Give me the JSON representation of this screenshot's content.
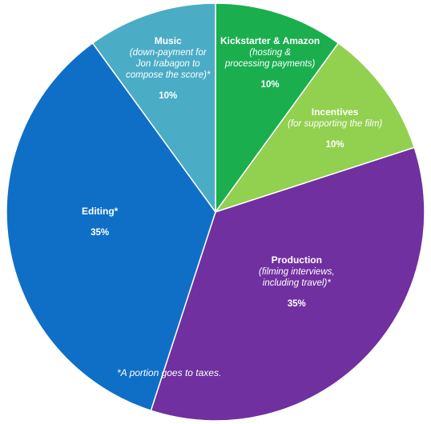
{
  "chart_data": {
    "type": "pie",
    "start_angle_deg": 0,
    "direction": "clockwise",
    "slices": [
      {
        "name": "Kickstarter & Amazon",
        "desc": [
          "(hosting &",
          "processing payments)"
        ],
        "value": 10,
        "label": "10%",
        "color": "#1aae4f"
      },
      {
        "name": "Incentives",
        "desc": [
          "(for supporting the film)"
        ],
        "value": 10,
        "label": "10%",
        "color": "#92d050"
      },
      {
        "name": "Production",
        "desc": [
          "(filming interviews,",
          "including travel)*"
        ],
        "value": 35,
        "label": "35%",
        "color": "#7030a0"
      },
      {
        "name": "Editing*",
        "desc": [],
        "value": 35,
        "label": "35%",
        "color": "#0f6fc6"
      },
      {
        "name": "Music",
        "desc": [
          "(down-payment  for",
          "Jon Irabagon to",
          "compose the score)*"
        ],
        "value": 10,
        "label": "10%",
        "color": "#4bacc6"
      }
    ],
    "footnote": "*A portion goes to taxes."
  }
}
